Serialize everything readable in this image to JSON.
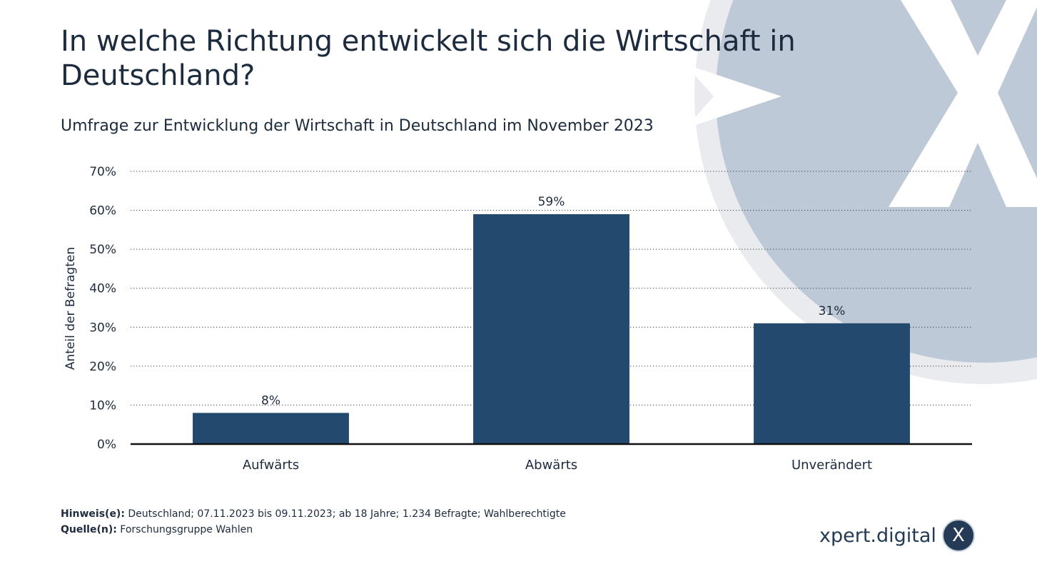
{
  "header": {
    "title": "In welche Richtung entwickelt sich die Wirtschaft in Deutschland?",
    "subtitle": "Umfrage zur Entwicklung der Wirtschaft in Deutschland im November 2023"
  },
  "chart_data": {
    "type": "bar",
    "categories": [
      "Aufwärts",
      "Abwärts",
      "Unverändert"
    ],
    "values": [
      8,
      59,
      31
    ],
    "value_labels": [
      "8%",
      "59%",
      "31%"
    ],
    "title": "In welche Richtung entwickelt sich die Wirtschaft in Deutschland?",
    "subtitle": "Umfrage zur Entwicklung der Wirtschaft in Deutschland im November 2023",
    "xlabel": "",
    "ylabel": "Anteil der Befragten",
    "ylim": [
      0,
      70
    ],
    "yticks": [
      0,
      10,
      20,
      30,
      40,
      50,
      60,
      70
    ],
    "ytick_labels": [
      "0%",
      "10%",
      "20%",
      "30%",
      "40%",
      "50%",
      "60%",
      "70%"
    ],
    "grid": true,
    "legend": "none",
    "bar_color": "#234a6e"
  },
  "footer": {
    "note_label": "Hinweis(e):",
    "note_text": " Deutschland; 07.11.2023 bis 09.11.2023; ab 18 Jahre; 1.234 Befragte; Wahlberechtigte",
    "source_label": "Quelle(n):",
    "source_text": " Forschungsgruppe Wahlen"
  },
  "brand": {
    "name": "xpert.digital",
    "badge": "X",
    "icon": "x-logo-icon",
    "accent_color": "#243a55",
    "watermark_color": "#bdc9d6"
  }
}
